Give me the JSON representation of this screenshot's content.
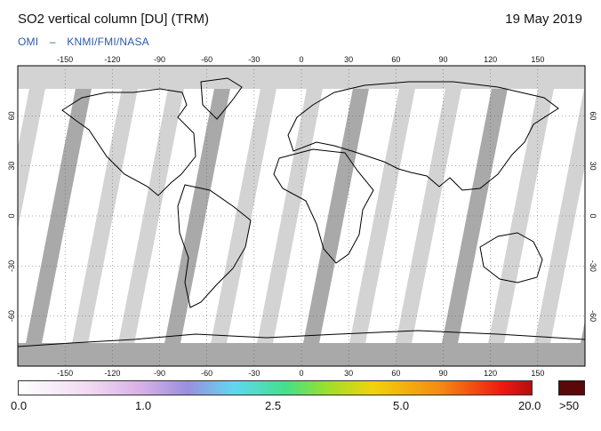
{
  "header": {
    "title": "SO2 vertical column [DU] (TRM)",
    "date": "19 May 2019",
    "credit_left": "OMI",
    "credit_sep": "–",
    "credit_right": "KNMI/FMI/NASA"
  },
  "map": {
    "lon_ticks": [
      "-150",
      "-120",
      "-90",
      "-60",
      "-30",
      "0",
      "30",
      "60",
      "90",
      "120",
      "150"
    ],
    "lat_ticks_left": [
      "60",
      "30",
      "0",
      "-30",
      "-60"
    ],
    "lat_ticks_right": [
      "60",
      "30",
      "0",
      "-30",
      "-60"
    ],
    "lon_range": [
      -180,
      180
    ],
    "lat_range": [
      -90,
      90
    ],
    "colors": {
      "background": "#ffffff",
      "no_data": "#d3d3d3",
      "land_mask": "#a9a9a9",
      "coastline": "#000000"
    }
  },
  "legend": {
    "labels": [
      "0.0",
      "1.0",
      "2.5",
      "5.0",
      "20.0",
      ">50"
    ],
    "colors": [
      "#ffffff",
      "#f1d9f2",
      "#dcb6e6",
      "#9a8fe0",
      "#5fd8f0",
      "#43e08a",
      "#9be02b",
      "#f2d20b",
      "#f58b12",
      "#ef1a12",
      "#b01010"
    ],
    "overflow_color": "#5a0808"
  }
}
